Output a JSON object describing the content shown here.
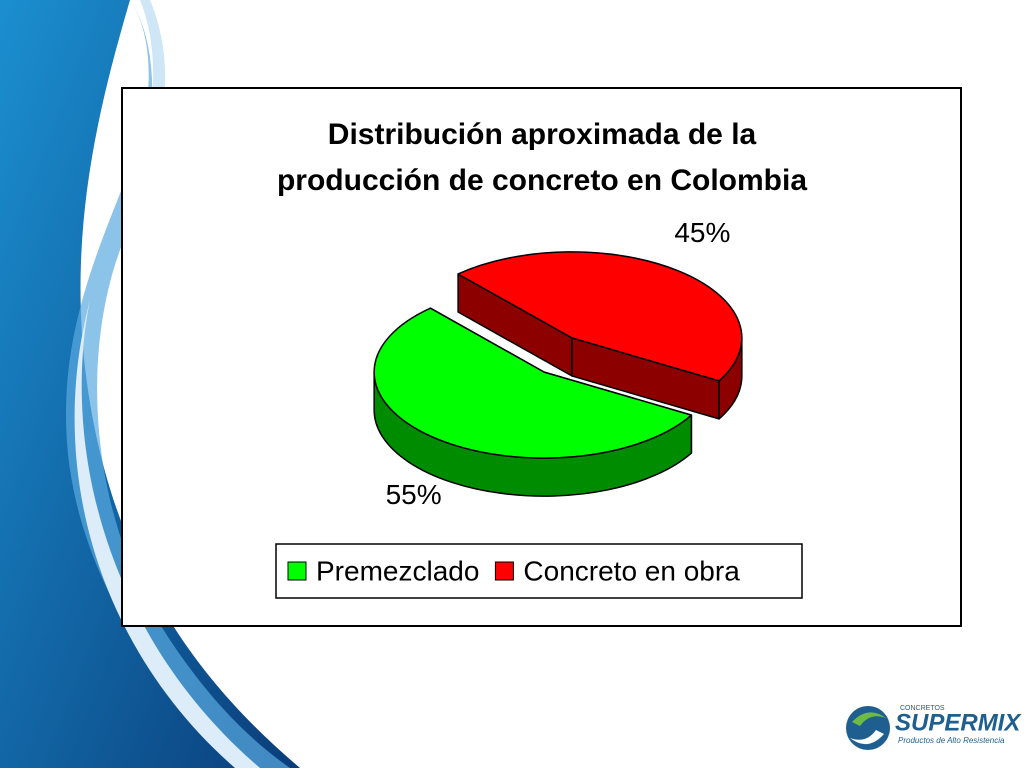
{
  "chart_data": {
    "type": "pie3d",
    "title": "Distribución aproximada de la producción de concreto en Colombia",
    "categories": [
      "Premezclado",
      "Concreto en obra"
    ],
    "values": [
      55,
      45
    ],
    "value_labels": [
      "55%",
      "45%"
    ],
    "colors": [
      "#00ff00",
      "#ff0000"
    ],
    "legend": "bottom"
  },
  "logo": {
    "small": "CONCRETOS",
    "name": "SUPERMIX",
    "tagline": "Productos de Alto Resistencia"
  }
}
